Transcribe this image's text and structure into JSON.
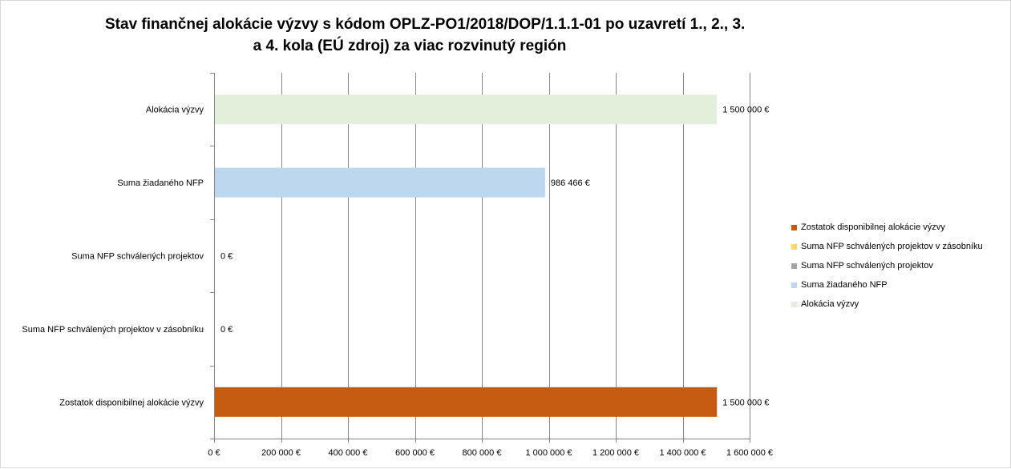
{
  "title_lines": [
    "Stav finančnej alokácie výzvy s kódom OPLZ-PO1/2018/DOP/1.1.1-01 po uzavretí 1., 2., 3.",
    "a 4. kola (EÚ zdroj) za viac rozvinutý región"
  ],
  "chart_data": {
    "type": "bar",
    "orientation": "horizontal",
    "title": "Stav finančnej alokácie výzvy s kódom OPLZ-PO1/2018/DOP/1.1.1-01 po uzavretí 1., 2., 3. a 4. kola (EÚ zdroj) za viac rozvinutý región",
    "categories": [
      "Alokácia výzvy",
      "Suma žiadaného NFP",
      "Suma NFP schválených projektov",
      "Suma NFP schválených projektov v zásobníku",
      "Zostatok disponibilnej alokácie výzvy"
    ],
    "values": [
      1500000,
      986466,
      0,
      0,
      1500000
    ],
    "value_labels": [
      "1 500 000 €",
      "986 466 €",
      "0 €",
      "0 €",
      "1 500 000 €"
    ],
    "colors": [
      "#e2efda",
      "#bdd7ee",
      "#a5a5a5",
      "#ffd966",
      "#c55a11"
    ],
    "xlim": [
      0,
      1600000
    ],
    "xticks": [
      0,
      200000,
      400000,
      600000,
      800000,
      1000000,
      1200000,
      1400000,
      1600000
    ],
    "xtick_labels": [
      "0 €",
      "200 000 €",
      "400 000 €",
      "600 000 €",
      "800 000 €",
      "1 000 000 €",
      "1 200 000 €",
      "1 400 000 €",
      "1 600 000 €"
    ],
    "grid": "vertical major gridlines",
    "legend_position": "right"
  },
  "legend": [
    {
      "label": "Zostatok disponibilnej alokácie výzvy",
      "color": "#c55a11"
    },
    {
      "label": "Suma NFP schválených projektov v zásobníku",
      "color": "#ffd966"
    },
    {
      "label": "Suma NFP schválených projektov",
      "color": "#a5a5a5"
    },
    {
      "label": "Suma žiadaného NFP",
      "color": "#bdd7ee"
    },
    {
      "label": "Alokácia výzvy",
      "color": "#e2efda"
    }
  ]
}
